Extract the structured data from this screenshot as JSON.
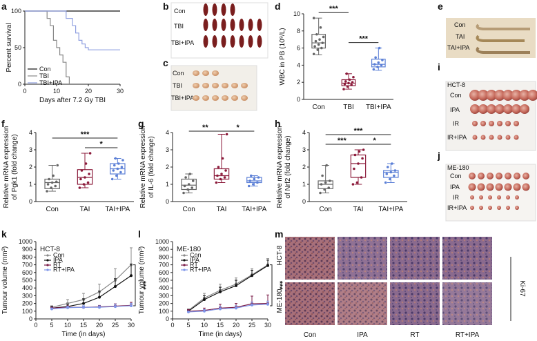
{
  "panel_labels": {
    "a": "a",
    "b": "b",
    "c": "c",
    "d": "d",
    "e": "e",
    "f": "f",
    "g": "g",
    "h": "h",
    "i": "i",
    "j": "j",
    "k": "k",
    "l": "l",
    "m": "m"
  },
  "colors": {
    "con": "#555555",
    "tbi": "#999999",
    "ipa_blue": "#5b7fd6",
    "tbi_red": "#8b1a3a",
    "black": "#111111",
    "purple": "#7a1c48",
    "lightblue": "#7f95e8"
  },
  "chart_data": [
    {
      "id": "a",
      "type": "line",
      "title": "",
      "xlabel": "Days after 7.2 Gy TBI",
      "ylabel": "Percent survival",
      "xlim": [
        0,
        30
      ],
      "ylim": [
        0,
        100
      ],
      "xticks": [
        "0",
        "10",
        "20",
        "30"
      ],
      "yticks": [
        "0",
        "50",
        "100"
      ],
      "legend": [
        "Con",
        "TBI",
        "TBI+IPA"
      ],
      "series": [
        {
          "name": "Con",
          "x": [
            0,
            30
          ],
          "y": [
            100,
            100
          ]
        },
        {
          "name": "TBI",
          "x": [
            0,
            7,
            7,
            8,
            8,
            9,
            9,
            10,
            10,
            11,
            11,
            12,
            12,
            13,
            13,
            14,
            14
          ],
          "y": [
            100,
            100,
            90,
            90,
            80,
            80,
            60,
            60,
            50,
            50,
            40,
            40,
            30,
            30,
            10,
            10,
            0
          ]
        },
        {
          "name": "TBI+IPA",
          "x": [
            0,
            13,
            13,
            15,
            15,
            16,
            16,
            17,
            17,
            18,
            18,
            19,
            19,
            20,
            20,
            30
          ],
          "y": [
            100,
            100,
            90,
            90,
            80,
            80,
            70,
            70,
            60,
            60,
            55,
            55,
            50,
            50,
            47,
            47
          ]
        }
      ]
    },
    {
      "id": "d",
      "type": "box",
      "ylabel": "WBC in PB (10⁹/L)",
      "yticks": [
        "0",
        "2",
        "4",
        "6",
        "8",
        "10"
      ],
      "ylim": [
        0,
        10
      ],
      "categories": [
        "Con",
        "TBI",
        "TBI+IPA"
      ],
      "boxes": [
        {
          "name": "Con",
          "min": 5.2,
          "q1": 6.0,
          "median": 6.6,
          "q3": 7.6,
          "max": 9.5,
          "points": [
            5.3,
            5.8,
            6.0,
            6.2,
            6.4,
            6.6,
            6.8,
            7.0,
            7.3,
            7.6,
            8.4,
            9.5
          ]
        },
        {
          "name": "TBI",
          "min": 1.2,
          "q1": 1.6,
          "median": 1.9,
          "q3": 2.3,
          "max": 3.0,
          "points": [
            1.2,
            1.5,
            1.7,
            1.8,
            1.9,
            2.0,
            2.1,
            2.3,
            2.6,
            3.0
          ]
        },
        {
          "name": "TBI+IPA",
          "min": 3.4,
          "q1": 3.8,
          "median": 4.1,
          "q3": 4.7,
          "max": 6.0,
          "points": [
            3.5,
            3.8,
            4.0,
            4.1,
            4.3,
            4.6,
            4.9,
            6.0
          ]
        }
      ],
      "significance": [
        {
          "from": "Con",
          "to": "TBI",
          "label": "***"
        },
        {
          "from": "TBI",
          "to": "TBI+IPA",
          "label": "***"
        }
      ]
    },
    {
      "id": "f",
      "type": "box",
      "ylabel": "Relative mRNA expression of Pgk1 (fold change)",
      "yticks": [
        "0",
        "1",
        "2",
        "3",
        "4"
      ],
      "ylim": [
        0,
        4
      ],
      "categories": [
        "Con",
        "TAI",
        "TAI+IPA"
      ],
      "boxes": [
        {
          "name": "Con",
          "min": 0.6,
          "q1": 0.75,
          "median": 1.1,
          "q3": 1.3,
          "max": 2.1,
          "points": [
            0.6,
            0.8,
            0.9,
            1.0,
            1.1,
            1.15,
            1.3,
            1.5,
            2.1
          ]
        },
        {
          "name": "TAI",
          "min": 0.8,
          "q1": 1.0,
          "median": 1.4,
          "q3": 1.85,
          "max": 2.8,
          "points": [
            0.8,
            1.0,
            1.1,
            1.3,
            1.4,
            1.6,
            1.8,
            2.2,
            2.8
          ]
        },
        {
          "name": "TAI+IPA",
          "min": 1.3,
          "q1": 1.6,
          "median": 1.9,
          "q3": 2.2,
          "max": 2.5,
          "points": [
            1.3,
            1.5,
            1.7,
            1.8,
            1.9,
            2.0,
            2.1,
            2.2,
            2.4,
            2.5
          ]
        }
      ],
      "significance": [
        {
          "from": "Con",
          "to": "TAI+IPA",
          "label": "***"
        },
        {
          "from": "TAI",
          "to": "TAI+IPA",
          "label": "*"
        }
      ]
    },
    {
      "id": "g",
      "type": "box",
      "ylabel": "Relative mRNA expression of IL-6 (fold change)",
      "yticks": [
        "0",
        "1",
        "2",
        "3",
        "4"
      ],
      "ylim": [
        0,
        4
      ],
      "categories": [
        "Con",
        "TAI",
        "TAI+IPA"
      ],
      "boxes": [
        {
          "name": "Con",
          "min": 0.5,
          "q1": 0.7,
          "median": 0.95,
          "q3": 1.3,
          "max": 1.6,
          "points": [
            0.5,
            0.7,
            0.8,
            0.9,
            1.0,
            1.2,
            1.4,
            1.6
          ]
        },
        {
          "name": "TAI",
          "min": 1.1,
          "q1": 1.3,
          "median": 1.5,
          "q3": 1.9,
          "max": 3.9,
          "points": [
            1.1,
            1.3,
            1.4,
            1.5,
            1.6,
            1.8,
            2.0,
            2.5,
            3.9
          ]
        },
        {
          "name": "TAI+IPA",
          "min": 0.9,
          "q1": 1.1,
          "median": 1.2,
          "q3": 1.4,
          "max": 1.5,
          "points": [
            0.9,
            1.0,
            1.1,
            1.2,
            1.3,
            1.4,
            1.5
          ]
        }
      ],
      "significance": [
        {
          "from": "Con",
          "to": "TAI",
          "label": "**"
        },
        {
          "from": "TAI",
          "to": "TAI+IPA",
          "label": "*"
        }
      ]
    },
    {
      "id": "h",
      "type": "box",
      "ylabel": "Relative mRNA expression of Nrf2 (fold change)",
      "yticks": [
        "0",
        "1",
        "2",
        "3",
        "4"
      ],
      "ylim": [
        0,
        4
      ],
      "categories": [
        "Con",
        "TAI",
        "TAI+IPA"
      ],
      "boxes": [
        {
          "name": "Con",
          "min": 0.5,
          "q1": 0.75,
          "median": 1.0,
          "q3": 1.2,
          "max": 2.1,
          "points": [
            0.5,
            0.7,
            0.8,
            1.0,
            1.1,
            1.2,
            1.5,
            2.1
          ]
        },
        {
          "name": "TAI",
          "min": 1.0,
          "q1": 1.4,
          "median": 2.2,
          "q3": 2.7,
          "max": 3.0,
          "points": [
            1.0,
            1.1,
            1.4,
            1.9,
            2.2,
            2.5,
            2.7,
            2.9,
            3.0
          ]
        },
        {
          "name": "TAI+IPA",
          "min": 1.1,
          "q1": 1.4,
          "median": 1.7,
          "q3": 1.8,
          "max": 2.2,
          "points": [
            1.1,
            1.3,
            1.5,
            1.6,
            1.7,
            1.8,
            2.0,
            2.2
          ]
        }
      ],
      "significance": [
        {
          "from": "Con",
          "to": "TAI+IPA",
          "label": "***"
        },
        {
          "from": "Con",
          "to": "TAI",
          "label": "***"
        },
        {
          "from": "TAI",
          "to": "TAI+IPA",
          "label": "*"
        }
      ]
    },
    {
      "id": "k",
      "type": "line",
      "title": "HCT-8",
      "xlabel": "Time (in days)",
      "ylabel": "Tumour volume (mm³)",
      "xlim": [
        0,
        30
      ],
      "ylim": [
        0,
        1000
      ],
      "x": [
        5,
        10,
        15,
        20,
        25,
        30
      ],
      "xticks": [
        "0",
        "5",
        "10",
        "15",
        "20",
        "25",
        "30"
      ],
      "yticks": [
        "0",
        "100",
        "200",
        "300",
        "400",
        "500",
        "600",
        "700",
        "800",
        "900",
        "1000"
      ],
      "legend": [
        "Con",
        "IPA",
        "RT",
        "RT+IPA"
      ],
      "series": [
        {
          "name": "Con",
          "values": [
            150,
            200,
            250,
            350,
            500,
            700
          ],
          "err": [
            20,
            50,
            80,
            100,
            150,
            220
          ]
        },
        {
          "name": "IPA",
          "values": [
            140,
            160,
            200,
            280,
            420,
            560
          ],
          "err": [
            20,
            30,
            60,
            80,
            100,
            150
          ]
        },
        {
          "name": "RT",
          "values": [
            140,
            150,
            150,
            155,
            165,
            175
          ],
          "err": [
            10,
            20,
            20,
            20,
            30,
            40
          ]
        },
        {
          "name": "RT+IPA",
          "values": [
            130,
            145,
            150,
            150,
            160,
            170
          ],
          "err": [
            10,
            20,
            20,
            20,
            30,
            30
          ]
        }
      ],
      "significance": [
        {
          "label": "***"
        }
      ]
    },
    {
      "id": "l",
      "type": "line",
      "title": "ME-180",
      "xlabel": "Time (in days)",
      "ylabel": "Tumour volume (mm³)",
      "xlim": [
        0,
        30
      ],
      "ylim": [
        0,
        1000
      ],
      "x": [
        5,
        10,
        15,
        20,
        25,
        30
      ],
      "xticks": [
        "0",
        "5",
        "10",
        "15",
        "20",
        "25",
        "30"
      ],
      "yticks": [
        "0",
        "100",
        "200",
        "300",
        "400",
        "500",
        "600",
        "700",
        "800",
        "900",
        "1000"
      ],
      "legend": [
        "Con",
        "IPA",
        "RT",
        "RT+IPA"
      ],
      "series": [
        {
          "name": "Con",
          "values": [
            110,
            270,
            370,
            450,
            570,
            700
          ],
          "err": [
            20,
            60,
            80,
            80,
            80,
            80
          ]
        },
        {
          "name": "IPA",
          "values": [
            100,
            250,
            350,
            430,
            560,
            690
          ],
          "err": [
            20,
            50,
            60,
            70,
            70,
            70
          ]
        },
        {
          "name": "RT",
          "values": [
            100,
            110,
            140,
            150,
            195,
            200
          ],
          "err": [
            20,
            30,
            50,
            50,
            100,
            110
          ]
        },
        {
          "name": "RT+IPA",
          "values": [
            90,
            100,
            130,
            140,
            180,
            190
          ],
          "err": [
            10,
            20,
            30,
            30,
            40,
            40
          ]
        }
      ],
      "significance": [
        {
          "label": "***"
        }
      ]
    }
  ],
  "photos": {
    "b_rows": [
      "Con",
      "TBI",
      "TBI+IPA"
    ],
    "c_rows": [
      "Con",
      "TBI",
      "TBI+IPA"
    ],
    "e_rows": [
      "Con",
      "TAI",
      "TAI+IPA"
    ],
    "i_title": "HCT-8",
    "i_rows": [
      "Con",
      "IPA",
      "IR",
      "IR+IPA"
    ],
    "j_title": "ME-180",
    "j_rows": [
      "Con",
      "IPA",
      "IR",
      "IR+IPA"
    ],
    "m_rows": [
      "HCT-8",
      "ME-180"
    ],
    "m_cols": [
      "Con",
      "IPA",
      "RT",
      "RT+IPA"
    ],
    "m_stain": "Ki-67"
  }
}
